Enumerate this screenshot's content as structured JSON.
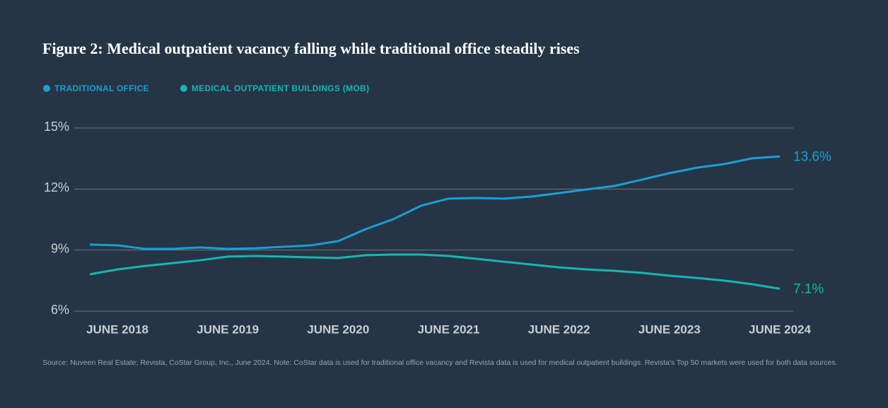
{
  "chart_data": {
    "type": "line",
    "title": "Figure 2: Medical outpatient vacancy falling while traditional office steadily rises",
    "source": "Source: Nuveen Real Estate; Revista, CoStar Group, Inc., June 2024. Note: CoStar data is used for traditional office vacancy and Revista data is used for medical outpatient buildings. Revista's Top 50 markets were used for both data sources.",
    "categories": [
      null,
      "JUNE 2018",
      null,
      null,
      null,
      "JUNE 2019",
      null,
      null,
      null,
      "JUNE 2020",
      null,
      null,
      null,
      "JUNE 2021",
      null,
      null,
      null,
      "JUNE 2022",
      null,
      null,
      null,
      "JUNE 2023",
      null,
      null,
      null,
      "JUNE 2024"
    ],
    "series": [
      {
        "name": "TRADITIONAL OFFICE",
        "color": "#1a9fd6",
        "values": [
          9.27,
          9.23,
          9.06,
          9.06,
          9.13,
          9.06,
          9.09,
          9.16,
          9.23,
          9.44,
          10.03,
          10.52,
          11.18,
          11.53,
          11.56,
          11.53,
          11.63,
          11.8,
          11.98,
          12.15,
          12.46,
          12.78,
          13.05,
          13.23,
          13.51,
          13.6
        ],
        "value_labels": [
          null,
          null,
          null,
          null,
          null,
          null,
          null,
          null,
          null,
          null,
          null,
          null,
          null,
          null,
          null,
          null,
          null,
          null,
          null,
          null,
          null,
          null,
          null,
          null,
          null,
          "13.6%"
        ]
      },
      {
        "name": "MEDICAL OUTPATIENT BUILDINGS (MOB)",
        "color": "#16b6b0",
        "values": [
          7.81,
          8.05,
          8.22,
          8.36,
          8.5,
          8.68,
          8.71,
          8.68,
          8.64,
          8.61,
          8.75,
          8.78,
          8.78,
          8.71,
          8.57,
          8.43,
          8.29,
          8.15,
          8.05,
          7.98,
          7.88,
          7.74,
          7.63,
          7.5,
          7.32,
          7.1
        ],
        "value_labels": [
          null,
          null,
          null,
          null,
          null,
          null,
          null,
          null,
          null,
          null,
          null,
          null,
          null,
          null,
          null,
          null,
          null,
          null,
          null,
          null,
          null,
          null,
          null,
          null,
          null,
          "7.1%"
        ]
      }
    ],
    "ylim": [
      6,
      15
    ],
    "yticks": [
      {
        "value": 6,
        "label": "6%"
      },
      {
        "value": 9,
        "label": "9%"
      },
      {
        "value": 12,
        "label": "12%"
      },
      {
        "value": 15,
        "label": "15%"
      }
    ],
    "grid": true
  }
}
